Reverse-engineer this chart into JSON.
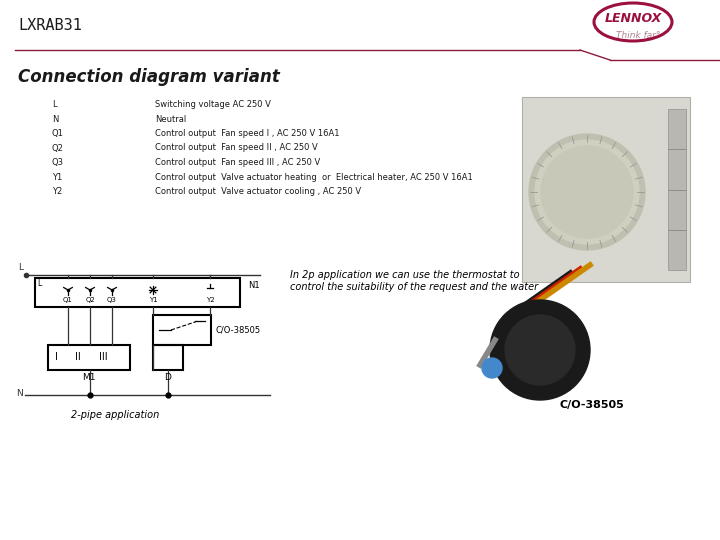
{
  "title": "LXRAB31",
  "subtitle": "Connection diagram variant",
  "bg_color": "#ffffff",
  "header_line_color": "#8B1A3A",
  "labels_keys": [
    "L",
    "N",
    "Q1",
    "Q2",
    "Q3",
    "Y1",
    "Y2"
  ],
  "labels_vals": [
    "Switching voltage AC 250 V",
    "Neutral",
    "Control output  Fan speed I , AC 250 V 16A1",
    "Control output  Fan speed II , AC 250 V",
    "Control output  Fan speed III , AC 250 V",
    "Control output  Valve actuator heating  or  Electrical heater, AC 250 V 16A1",
    "Control output  Valve actuator cooling , AC 250 V"
  ],
  "note_line1": "In 2p application we can use the thermostat to",
  "note_line2": "control the suitability of the request and the water",
  "two_pipe_label": "2-pipe application",
  "cio_label": "C/O-38505",
  "cio_label2": "C/O-38505",
  "text_color": "#1a1a1a",
  "title_color": "#1a1a1a",
  "subtitle_color": "#1a1a1a",
  "diagram_color": "#333333",
  "lennox_color": "#9B1040"
}
